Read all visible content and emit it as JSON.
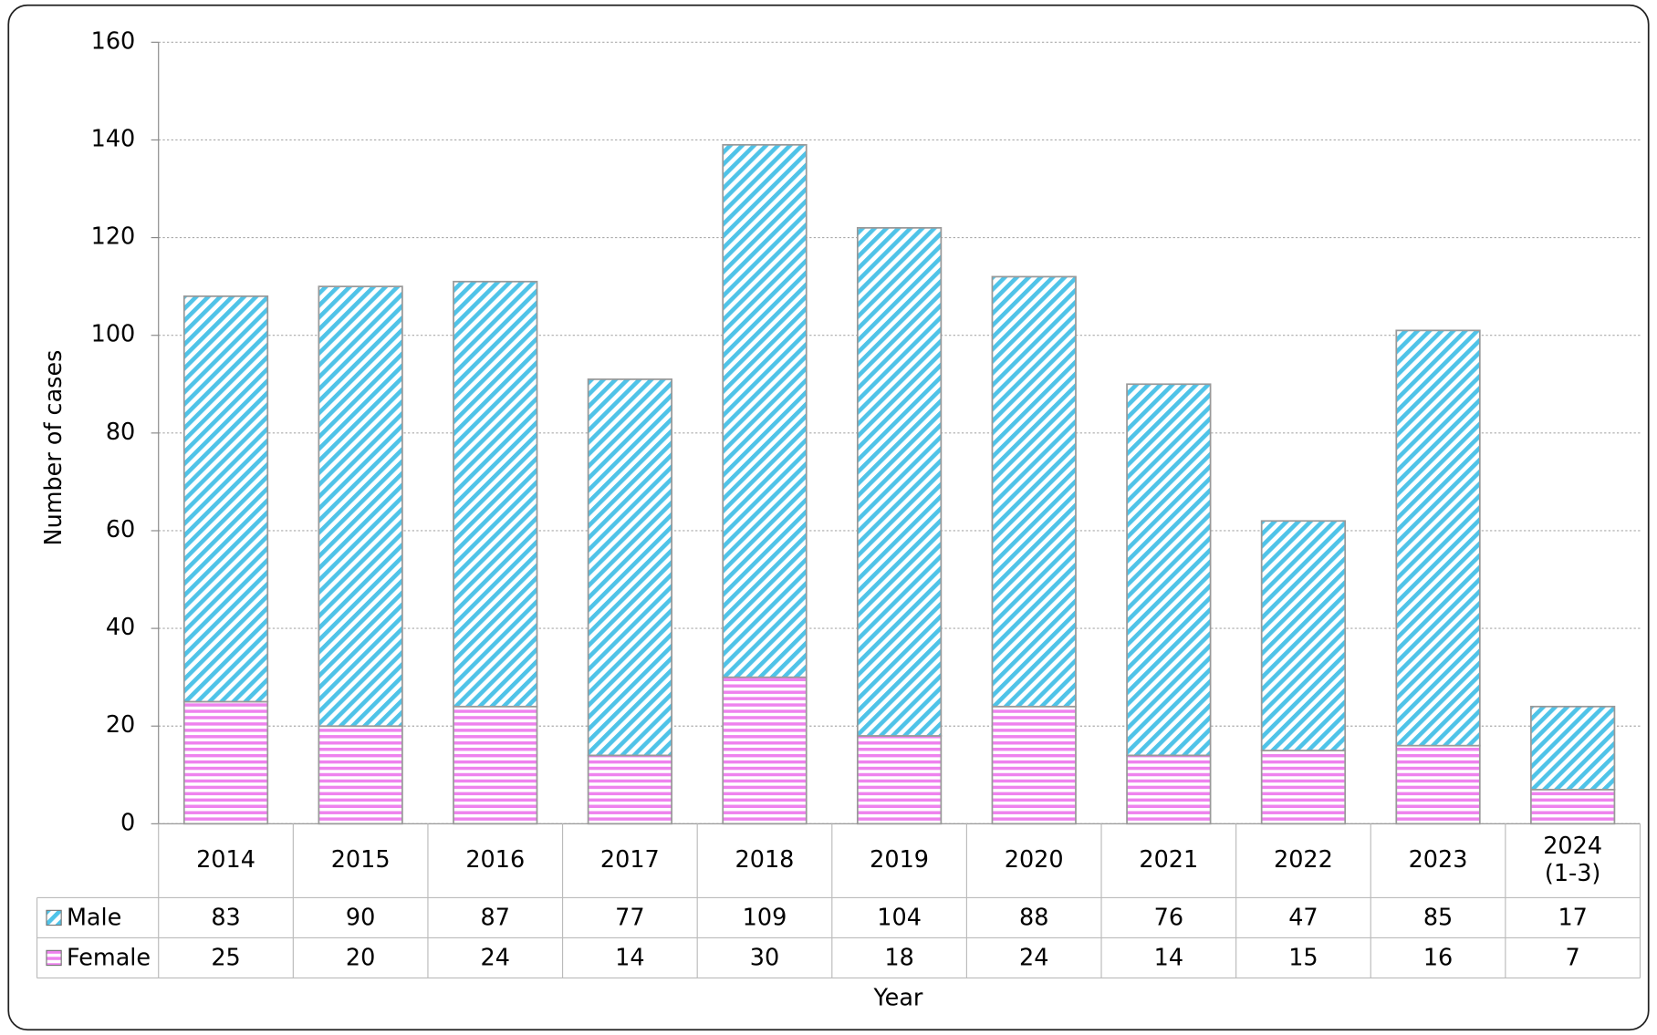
{
  "chart_data": {
    "type": "stacked_bar",
    "x_label": "Year",
    "y_label": "Number of cases",
    "categories": [
      "2014",
      "2015",
      "2016",
      "2017",
      "2018",
      "2019",
      "2020",
      "2021",
      "2022",
      "2023",
      "2024\n(1-3)"
    ],
    "series": [
      {
        "name": "Male",
        "color": "#4fc3e8",
        "values": [
          83,
          90,
          87,
          77,
          109,
          104,
          88,
          76,
          47,
          85,
          17
        ]
      },
      {
        "name": "Female",
        "color": "#ee82ee",
        "values": [
          25,
          20,
          24,
          14,
          30,
          18,
          24,
          14,
          15,
          16,
          7
        ]
      }
    ],
    "ylim": [
      0,
      160
    ],
    "yticks": [
      0,
      20,
      40,
      60,
      80,
      100,
      120,
      140,
      160
    ],
    "grid": true
  }
}
